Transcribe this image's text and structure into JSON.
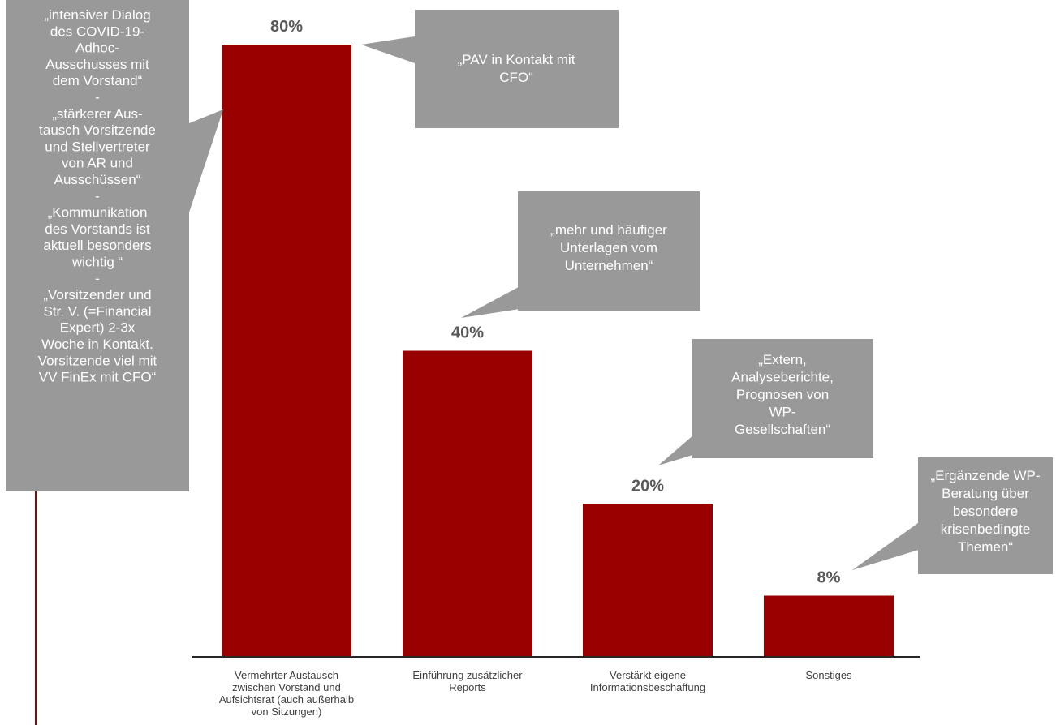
{
  "colors": {
    "bar": "#990000",
    "bubble": "#999999",
    "bubble_text": "#ffffff",
    "value_text": "#595959",
    "axis": "#262626",
    "accent_line": "#990000"
  },
  "chart_data": {
    "type": "bar",
    "title": "",
    "xlabel": "",
    "ylabel": "",
    "ylim": [
      0,
      80
    ],
    "grid": false,
    "categories": [
      [
        "Vermehrter Austausch",
        "zwischen Vorstand und",
        "Aufsichtsrat (auch außerhalb",
        "von Sitzungen)"
      ],
      [
        "Einführung zusätzlicher",
        "Reports"
      ],
      [
        "Verstärkt eigene",
        "Informationsbeschaffung"
      ],
      [
        "Sonstiges"
      ]
    ],
    "values": [
      80,
      40,
      20,
      8
    ],
    "value_labels": [
      "80%",
      "40%",
      "20%",
      "8%"
    ],
    "annotations": [
      {
        "bar": 0,
        "lines": [
          "„intensiver Dialog",
          "des COVID-19-",
          "Adhoc-",
          "Ausschusses mit",
          "dem Vorstand“",
          "-",
          "„stärkerer Aus-",
          "tausch Vorsitzende",
          "und Stellvertreter",
          "von AR und",
          "Ausschüssen“",
          "-",
          "„Kommunikation",
          "des Vorstands ist",
          "aktuell besonders",
          "wichtig “",
          "-",
          "„Vorsitzender und",
          "Str. V. (=Financial",
          "Expert) 2-3x",
          "Woche in Kontakt.",
          "Vorsitzende viel mit",
          "VV FinEx mit CFO“"
        ]
      },
      {
        "bar": 0,
        "lines": [
          "„PAV in Kontakt mit",
          "CFO“"
        ]
      },
      {
        "bar": 1,
        "lines": [
          "„mehr und häufiger",
          "Unterlagen vom",
          "Unternehmen“"
        ]
      },
      {
        "bar": 2,
        "lines": [
          "„Extern,",
          "Analyseberichte,",
          "Prognosen von",
          "WP-",
          "Gesellschaften“"
        ]
      },
      {
        "bar": 3,
        "lines": [
          "„Ergänzende WP-",
          "Beratung über",
          "besondere",
          "krisenbedingte",
          "Themen“"
        ]
      }
    ]
  }
}
